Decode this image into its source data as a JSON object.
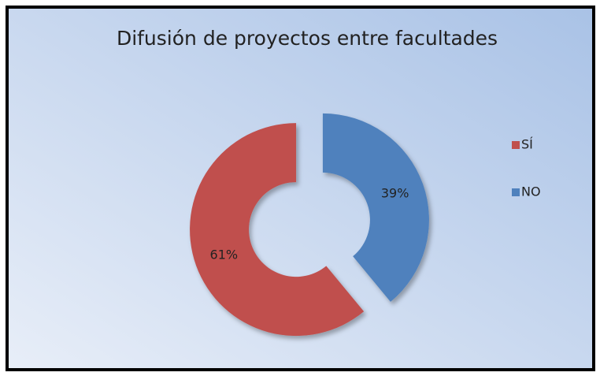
{
  "chart_data": {
    "type": "pie",
    "title": "Difusión de proyectos entre facultades",
    "categories": [
      "SÍ",
      "NO"
    ],
    "values": [
      61,
      39
    ],
    "value_labels": [
      "61%",
      "39%"
    ],
    "colors": [
      "#c0504d",
      "#4f81bd"
    ],
    "legend": "right"
  }
}
